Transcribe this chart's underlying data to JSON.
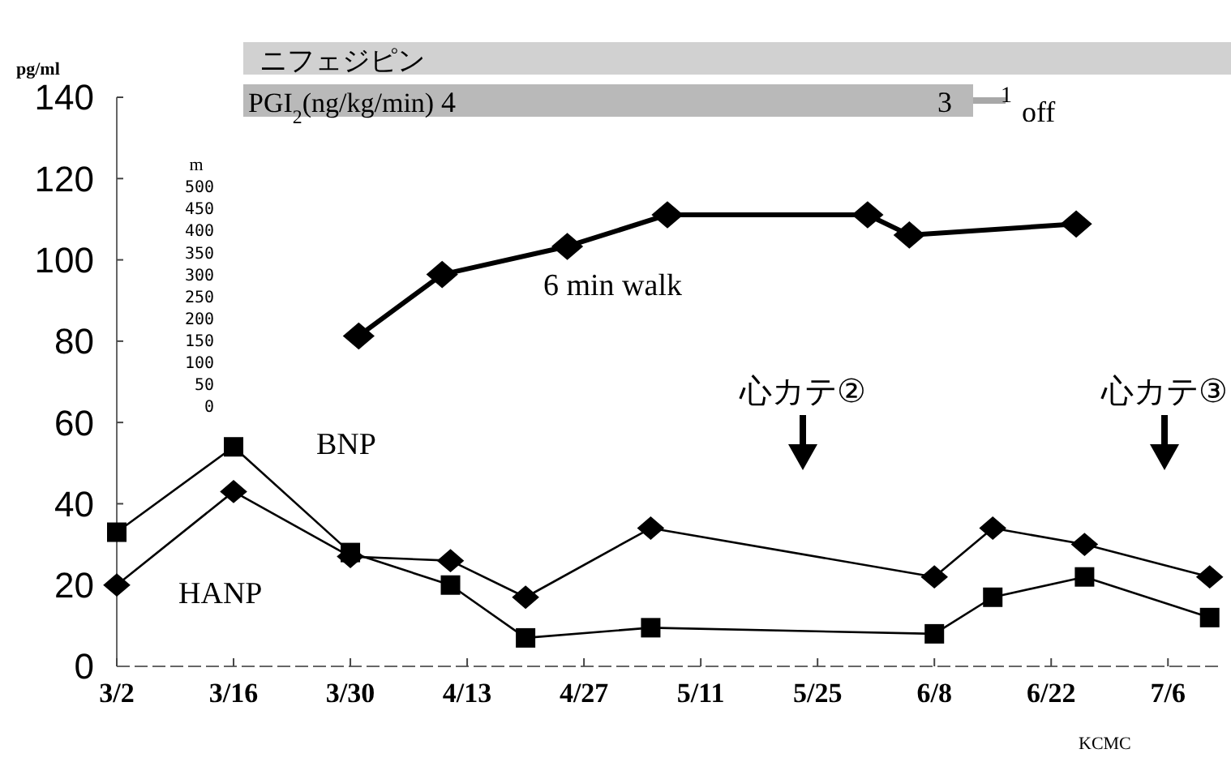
{
  "chart_data": {
    "type": "line",
    "ylabel": "pg/ml",
    "y2label": "m",
    "xlim": [
      "--03-02",
      "--07-12"
    ],
    "xticks": [
      {
        "value": "--03-02",
        "label": "3/2"
      },
      {
        "value": "--03-16",
        "label": "3/16"
      },
      {
        "value": "--03-30",
        "label": "3/30"
      },
      {
        "value": "--04-13",
        "label": "4/13"
      },
      {
        "value": "--04-27",
        "label": "4/27"
      },
      {
        "value": "--05-11",
        "label": "5/11"
      },
      {
        "value": "--05-25",
        "label": "5/25"
      },
      {
        "value": "--06-08",
        "label": "6/8"
      },
      {
        "value": "--06-22",
        "label": "6/22"
      },
      {
        "value": "--07-06",
        "label": "7/6"
      }
    ],
    "ylim": [
      0,
      140
    ],
    "yticks": [
      0,
      20,
      40,
      60,
      80,
      100,
      120,
      140
    ],
    "y2lim": [
      0,
      500
    ],
    "y2ticks": [
      0,
      50,
      100,
      150,
      200,
      250,
      300,
      350,
      400,
      450,
      500
    ],
    "series": [
      {
        "name": "BNP",
        "color": "#000000",
        "marker": "square",
        "x": [
          "--03-02",
          "--03-16",
          "--03-30",
          "--04-11",
          "--04-20",
          "--05-05",
          "--06-08",
          "--06-15",
          "--06-26",
          "--07-11"
        ],
        "values": [
          33,
          54,
          28,
          20,
          7,
          9.5,
          8,
          17,
          22,
          12
        ]
      },
      {
        "name": "HANP",
        "color": "#000000",
        "marker": "diamond",
        "x": [
          "--03-02",
          "--03-16",
          "--03-30",
          "--04-11",
          "--04-20",
          "--05-05",
          "--06-08",
          "--06-15",
          "--06-26",
          "--07-11"
        ],
        "values": [
          20,
          43,
          27,
          26,
          17,
          34,
          22,
          34,
          30,
          22
        ]
      },
      {
        "name": "6 min walk",
        "color": "#000000",
        "marker": "diamond",
        "axis": "y2",
        "x": [
          "--03-31",
          "--04-10",
          "--04-25",
          "--05-07",
          "--05-31",
          "--06-05",
          "--06-25"
        ],
        "values": [
          160,
          300,
          364,
          436,
          436,
          390,
          415
        ]
      }
    ],
    "annotations": [
      "心カテ②",
      "心カテ③",
      "ニフェジピン",
      "PGI$_{2}$(ng/kg/min)",
      "4",
      "3",
      "1",
      "off",
      "KCMC"
    ]
  }
}
